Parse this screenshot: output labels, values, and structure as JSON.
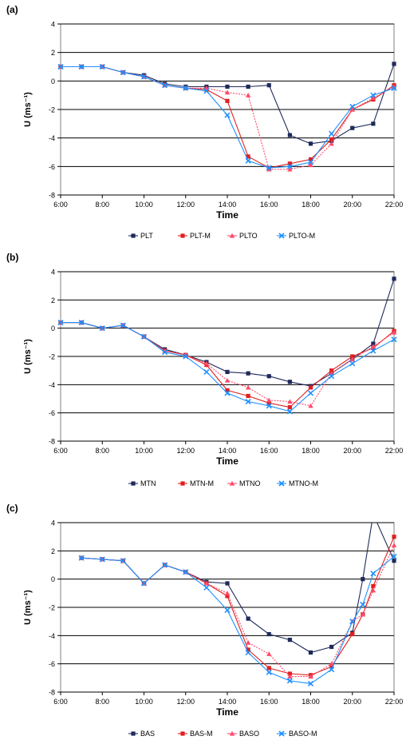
{
  "chart_data": [
    {
      "panel_label": "(a)",
      "type": "line",
      "xlabel": "Time",
      "ylabel": "U (ms⁻¹)",
      "ylim": [
        -8,
        4
      ],
      "yticks": [
        "4",
        "2",
        "0",
        "-2",
        "-4",
        "-6",
        "-8"
      ],
      "xlim": [
        6,
        22
      ],
      "xticks": [
        "6:00",
        "8:00",
        "10:00",
        "12:00",
        "14:00",
        "16:00",
        "18:00",
        "20:00",
        "22:00"
      ],
      "grid": "horizontal",
      "legend": "bottom",
      "x": [
        6,
        7,
        8,
        9,
        10,
        11,
        12,
        13,
        14,
        15,
        16,
        17,
        18,
        19,
        20,
        21,
        22
      ],
      "series": [
        {
          "name": "PLT",
          "color": "#1f2a5a",
          "values": [
            1.0,
            1.0,
            1.0,
            0.6,
            0.4,
            -0.2,
            -0.4,
            -0.4,
            -0.4,
            -0.4,
            -0.3,
            -3.8,
            -4.4,
            -4.2,
            -3.3,
            -3.0,
            1.2
          ]
        },
        {
          "name": "PLT-M",
          "color": "#e02020",
          "values": [
            1.0,
            1.0,
            1.0,
            0.6,
            0.3,
            -0.3,
            -0.5,
            -0.6,
            -1.4,
            -5.3,
            -6.1,
            -5.8,
            -5.5,
            -4.1,
            -2.0,
            -1.3,
            -0.3
          ]
        },
        {
          "name": "PLTO",
          "color": "#ff4a6a",
          "values": [
            1.0,
            1.0,
            1.0,
            0.6,
            0.3,
            -0.3,
            -0.5,
            -0.5,
            -0.8,
            -1.0,
            -6.2,
            -6.2,
            -5.9,
            -4.4,
            -2.0,
            -1.2,
            -0.4
          ]
        },
        {
          "name": "PLTO-M",
          "color": "#1e90ff",
          "values": [
            1.0,
            1.0,
            1.0,
            0.6,
            0.3,
            -0.3,
            -0.5,
            -0.7,
            -2.4,
            -5.6,
            -6.1,
            -6.0,
            -5.7,
            -3.7,
            -1.8,
            -1.0,
            -0.5
          ]
        }
      ]
    },
    {
      "panel_label": "(b)",
      "type": "line",
      "xlabel": "Time",
      "ylabel": "U (ms⁻¹)",
      "ylim": [
        -8,
        4
      ],
      "yticks": [
        "4",
        "2",
        "0",
        "-2",
        "-4",
        "-6",
        "-8"
      ],
      "xlim": [
        6,
        22
      ],
      "xticks": [
        "6:00",
        "8:00",
        "10:00",
        "12:00",
        "14:00",
        "16:00",
        "18:00",
        "20:00",
        "22:00"
      ],
      "grid": "horizontal",
      "legend": "bottom",
      "x": [
        6,
        7,
        8,
        9,
        10,
        11,
        12,
        13,
        14,
        15,
        16,
        17,
        18,
        19,
        20,
        21,
        22
      ],
      "series": [
        {
          "name": "MTN",
          "color": "#1f2a5a",
          "values": [
            0.4,
            0.4,
            0.0,
            0.2,
            -0.6,
            -1.5,
            -1.9,
            -2.4,
            -3.1,
            -3.2,
            -3.4,
            -3.8,
            -4.1,
            -3.2,
            -2.2,
            -1.1,
            3.5
          ]
        },
        {
          "name": "MTN-M",
          "color": "#e02020",
          "values": [
            0.4,
            0.4,
            0.0,
            0.2,
            -0.6,
            -1.6,
            -1.9,
            -2.6,
            -4.4,
            -4.8,
            -5.3,
            -5.6,
            -4.2,
            -3.0,
            -2.0,
            -1.4,
            -0.2
          ]
        },
        {
          "name": "MTNO",
          "color": "#ff4a6a",
          "values": [
            0.4,
            0.4,
            0.0,
            0.2,
            -0.6,
            -1.6,
            -1.9,
            -2.5,
            -3.7,
            -4.2,
            -5.1,
            -5.2,
            -5.5,
            -3.2,
            -2.2,
            -1.3,
            -0.3
          ]
        },
        {
          "name": "MTNO-M",
          "color": "#1e90ff",
          "values": [
            0.4,
            0.4,
            0.0,
            0.2,
            -0.6,
            -1.7,
            -2.0,
            -3.1,
            -4.6,
            -5.2,
            -5.5,
            -5.9,
            -4.6,
            -3.4,
            -2.5,
            -1.6,
            -0.8
          ]
        }
      ]
    },
    {
      "panel_label": "(c)",
      "type": "line",
      "xlabel": "Time",
      "ylabel": "U (ms⁻¹)",
      "ylim": [
        -8,
        4
      ],
      "yticks": [
        "4",
        "2",
        "0",
        "-2",
        "-4",
        "-6",
        "-8"
      ],
      "xlim": [
        6,
        22
      ],
      "xticks": [
        "6:00",
        "8:00",
        "10:00",
        "12:00",
        "14:00",
        "16:00",
        "18:00",
        "20:00",
        "22:00"
      ],
      "grid": "horizontal",
      "legend": "bottom",
      "x": [
        7,
        8,
        9,
        10,
        11,
        12,
        13,
        14,
        15,
        16,
        17,
        18,
        19,
        20,
        20.5,
        21,
        22
      ],
      "series": [
        {
          "name": "BAS",
          "color": "#1f2a5a",
          "values": [
            1.5,
            1.4,
            1.3,
            -0.3,
            1.0,
            0.5,
            -0.2,
            -0.3,
            -2.8,
            -3.9,
            -4.3,
            -5.2,
            -4.8,
            -3.8,
            0.0,
            4.6,
            1.3
          ]
        },
        {
          "name": "BAS-M",
          "color": "#e02020",
          "values": [
            1.5,
            1.4,
            1.3,
            -0.3,
            1.0,
            0.5,
            -0.3,
            -1.2,
            -5.0,
            -6.3,
            -6.7,
            -6.8,
            -6.2,
            -3.9,
            -2.5,
            -0.5,
            3.0
          ]
        },
        {
          "name": "BASO",
          "color": "#ff4a6a",
          "values": [
            1.5,
            1.4,
            1.3,
            -0.3,
            1.0,
            0.5,
            -0.3,
            -1.0,
            -4.5,
            -5.3,
            -6.9,
            -6.9,
            -6.0,
            -3.0,
            -2.5,
            -0.8,
            2.4
          ]
        },
        {
          "name": "BASO-M",
          "color": "#1e90ff",
          "values": [
            1.5,
            1.4,
            1.3,
            -0.3,
            1.0,
            0.5,
            -0.6,
            -2.2,
            -5.2,
            -6.6,
            -7.2,
            -7.4,
            -6.4,
            -3.0,
            -1.8,
            0.4,
            1.6
          ]
        }
      ]
    }
  ]
}
